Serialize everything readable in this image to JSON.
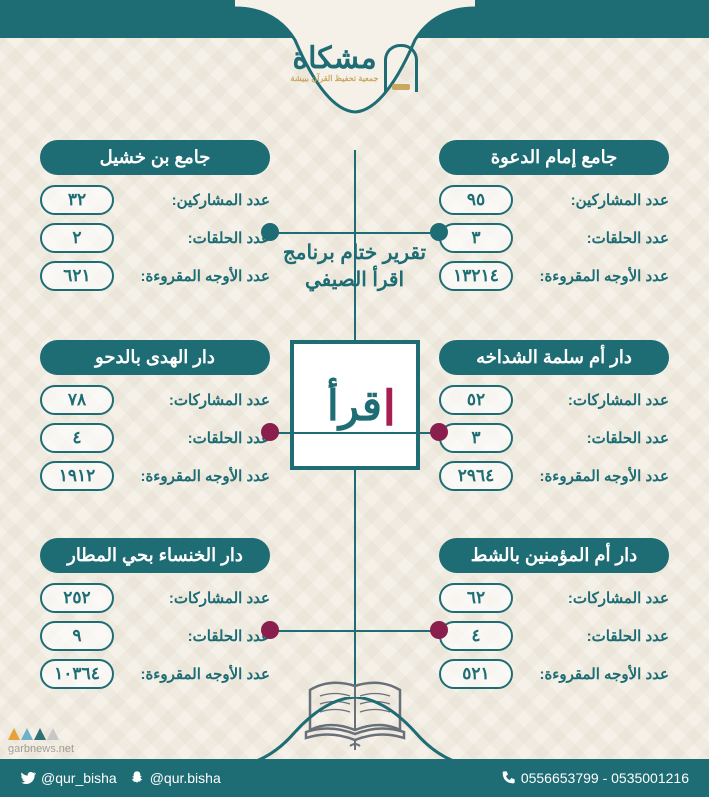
{
  "brand": {
    "name": "مشكاة",
    "subtitle": "جمعية تحفيظ القرآن ببيشة"
  },
  "center": {
    "title_line1": "تقرير ختام برنامج",
    "title_line2": "اقرأ الصيفي",
    "logo_text": "قرأ"
  },
  "colors": {
    "teal": "#1e6c74",
    "maroon": "#8a1f4e",
    "gold": "#c9a961",
    "bg": "#f5f1e8"
  },
  "mosques": [
    {
      "side": "right",
      "row": 1,
      "title": "جامع إمام الدعوة",
      "dot_color": "#1e6c74",
      "metrics": [
        {
          "label": "عدد المشاركين:",
          "value": "٩٥"
        },
        {
          "label": "عدد الحلقات:",
          "value": "٣"
        },
        {
          "label": "عدد الأوجه المقروءة:",
          "value": "١٣٢١٤"
        }
      ]
    },
    {
      "side": "left",
      "row": 1,
      "title": "جامع بن خشيل",
      "dot_color": "#1e6c74",
      "metrics": [
        {
          "label": "عدد المشاركين:",
          "value": "٣٢"
        },
        {
          "label": "عدد الحلقات:",
          "value": "٢"
        },
        {
          "label": "عدد الأوجه المقروءة:",
          "value": "٦٢١"
        }
      ]
    },
    {
      "side": "right",
      "row": 2,
      "title": "دار أم سلمة الشداخه",
      "dot_color": "#8a1f4e",
      "metrics": [
        {
          "label": "عدد المشاركات:",
          "value": "٥٢"
        },
        {
          "label": "عدد الحلقات:",
          "value": "٣"
        },
        {
          "label": "عدد الأوجه المقروءة:",
          "value": "٢٩٦٤"
        }
      ]
    },
    {
      "side": "left",
      "row": 2,
      "title": "دار الهدى بالدحو",
      "dot_color": "#8a1f4e",
      "metrics": [
        {
          "label": "عدد المشاركات:",
          "value": "٧٨"
        },
        {
          "label": "عدد الحلقات:",
          "value": "٤"
        },
        {
          "label": "عدد الأوجه المقروءة:",
          "value": "١٩١٢"
        }
      ]
    },
    {
      "side": "right",
      "row": 3,
      "title": "دار أم المؤمنين بالشط",
      "dot_color": "#8a1f4e",
      "metrics": [
        {
          "label": "عدد المشاركات:",
          "value": "٦٢"
        },
        {
          "label": "عدد الحلقات:",
          "value": "٤"
        },
        {
          "label": "عدد الأوجه المقروءة:",
          "value": "٥٢١"
        }
      ]
    },
    {
      "side": "left",
      "row": 3,
      "title": "دار الخنساء بحي المطار",
      "dot_color": "#8a1f4e",
      "metrics": [
        {
          "label": "عدد المشاركات:",
          "value": "٢٥٢"
        },
        {
          "label": "عدد الحلقات:",
          "value": "٩"
        },
        {
          "label": "عدد الأوجه المقروءة:",
          "value": "١٠٣٦٤"
        }
      ]
    }
  ],
  "footer": {
    "phones": "0556653799 - 0535001216",
    "twitter": "@qur_bisha",
    "snapchat": "@qur.bisha"
  },
  "watermark": {
    "text": "garbnews.net",
    "tri_colors": [
      "#e8a13a",
      "#6fb1c9",
      "#2e6f78",
      "#c7c7c7"
    ]
  }
}
